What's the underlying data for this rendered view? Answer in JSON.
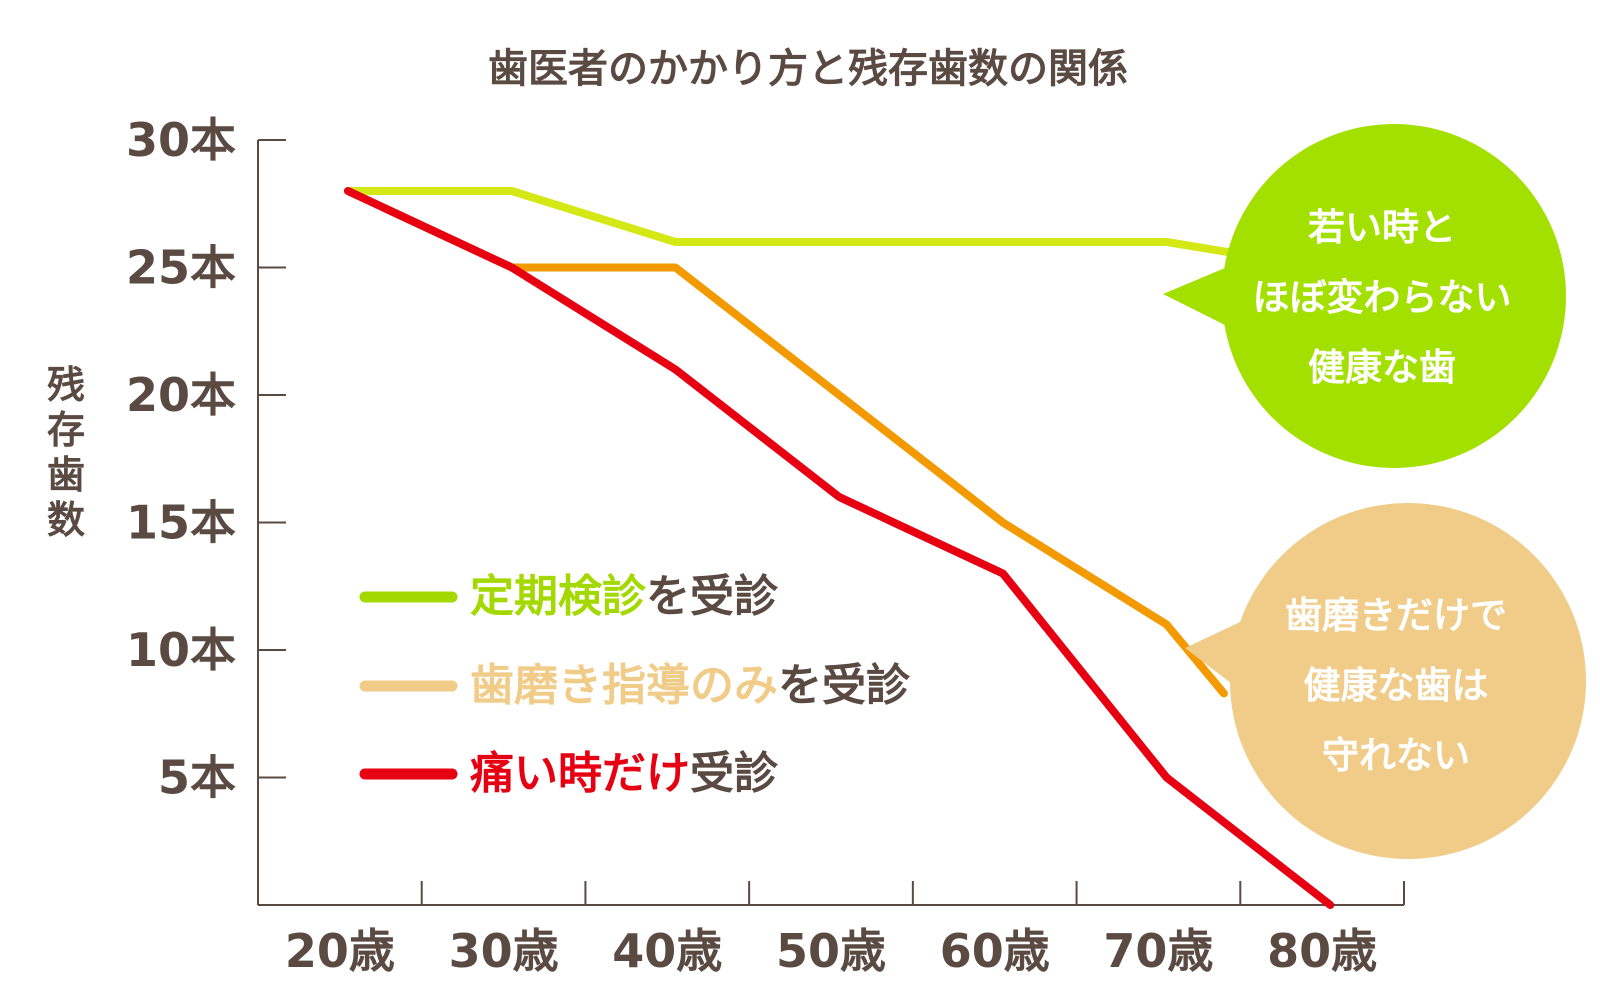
{
  "chart_data": {
    "type": "line",
    "title": "歯医者のかかり方と残存歯数の関係",
    "ylabel": "残存歯数",
    "x_categories": [
      "20歳",
      "30歳",
      "40歳",
      "50歳",
      "60歳",
      "70歳",
      "80歳"
    ],
    "y_ticks": [
      "30本",
      "25本",
      "20本",
      "15本",
      "10本",
      "5本"
    ],
    "y_tick_values": [
      30,
      25,
      20,
      15,
      10,
      5
    ],
    "ylim": [
      0,
      30
    ],
    "grid": false,
    "legend_position": "center-left",
    "series": [
      {
        "name": "定期検診を受診",
        "legend_highlight": "定期検診",
        "legend_rest": "を受診",
        "color": "#d4e816",
        "legend_color": "#a3d900",
        "x": [
          20.5,
          30.5,
          40.5,
          50.5,
          60.5,
          70.5,
          74.3
        ],
        "y": [
          28,
          28,
          26,
          26,
          26,
          26,
          25.6
        ]
      },
      {
        "name": "歯磨き指導のみを受診",
        "legend_highlight": "歯磨き指導のみ",
        "legend_rest": "を受診",
        "color": "#f29a00",
        "legend_color": "#f0cc88",
        "x": [
          20.5,
          30.5,
          40.5,
          50.5,
          60.5,
          70.5,
          74.0
        ],
        "y": [
          28,
          25,
          25,
          20,
          15,
          11,
          8.3
        ]
      },
      {
        "name": "痛い時だけ受診",
        "legend_highlight": "痛い時だけ",
        "legend_rest": "受診",
        "color": "#e60012",
        "legend_color": "#e60012",
        "x": [
          20.5,
          30.5,
          40.5,
          50.5,
          60.5,
          70.5,
          80.5
        ],
        "y": [
          28,
          25,
          21,
          16,
          13,
          5,
          0
        ]
      }
    ],
    "annotations": [
      {
        "lines": [
          "若い時と",
          "ほぼ変わらない",
          "健康な歯"
        ],
        "color": "#a3e000"
      },
      {
        "lines": [
          "歯磨きだけで",
          "健康な歯は",
          "守れない"
        ],
        "color": "#f0cc88"
      }
    ]
  }
}
